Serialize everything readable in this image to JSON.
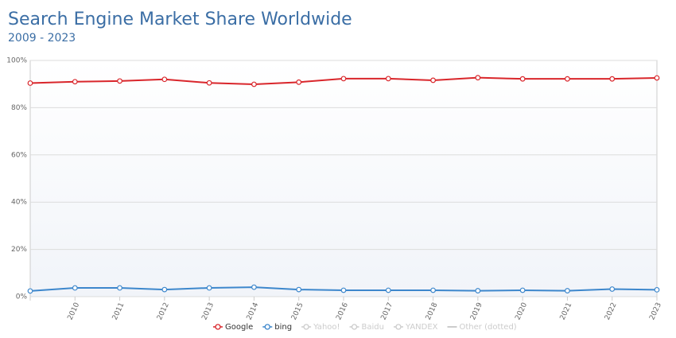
{
  "chart_data": {
    "type": "line",
    "title": "Search Engine Market Share Worldwide",
    "subtitle": "2009 - 2023",
    "categories": [
      null,
      "2010",
      "2011",
      "2012",
      "2013",
      "2014",
      "2015",
      "2016",
      "2017",
      "2018",
      "2019",
      "2020",
      "2021",
      "2022",
      "2023"
    ],
    "series": [
      {
        "name": "Google",
        "color": "#d9262b",
        "values": [
          90.4,
          91.0,
          91.3,
          92.0,
          90.5,
          89.9,
          90.8,
          92.3,
          92.3,
          91.6,
          92.7,
          92.2,
          92.2,
          92.2,
          92.6
        ]
      },
      {
        "name": "bing",
        "color": "#3d87cc",
        "values": [
          2.4,
          3.7,
          3.7,
          3.0,
          3.7,
          4.0,
          3.0,
          2.7,
          2.7,
          2.7,
          2.5,
          2.7,
          2.5,
          3.2,
          2.9
        ]
      }
    ],
    "legend_inactive": [
      "Yahoo!",
      "Baidu",
      "YANDEX",
      "Other (dotted)"
    ],
    "ylim": [
      0,
      100
    ],
    "yticks": [
      {
        "value": 0,
        "label": "0%"
      },
      {
        "value": 20,
        "label": "20%"
      },
      {
        "value": 40,
        "label": "40%"
      },
      {
        "value": 60,
        "label": "60%"
      },
      {
        "value": 80,
        "label": "80%"
      },
      {
        "value": 100,
        "label": "100%"
      }
    ],
    "grid": true
  }
}
